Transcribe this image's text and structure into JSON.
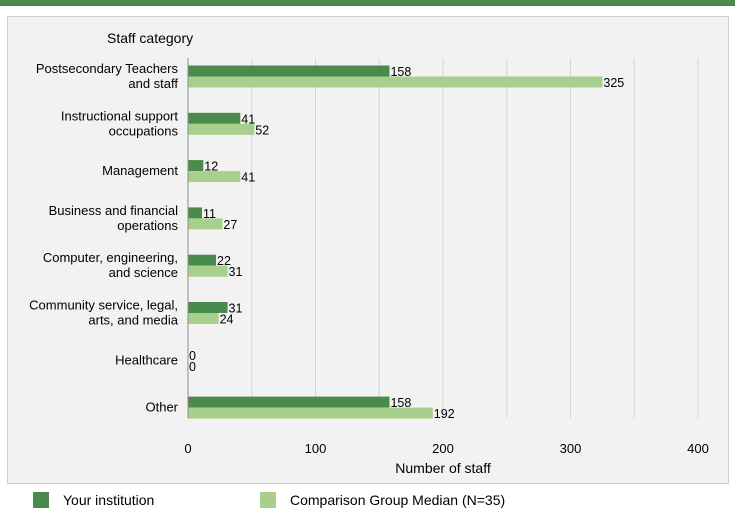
{
  "chart_data": {
    "type": "bar",
    "orientation": "horizontal",
    "title": "Staff category",
    "xlabel": "Number of staff",
    "ylabel": "Staff category",
    "xlim": [
      0,
      400
    ],
    "xticks": [
      0,
      100,
      200,
      300,
      400
    ],
    "grid": true,
    "legend_position": "bottom",
    "categories": [
      [
        "Postsecondary Teachers",
        "and staff"
      ],
      [
        "Instructional support",
        "occupations"
      ],
      [
        "Management"
      ],
      [
        "Business and financial",
        "operations"
      ],
      [
        "Computer, engineering,",
        "and science"
      ],
      [
        "Community service, legal,",
        "arts, and media"
      ],
      [
        "Healthcare"
      ],
      [
        "Other"
      ]
    ],
    "series": [
      {
        "name": "Your institution",
        "color": "#4a8a4d",
        "values": [
          158,
          41,
          12,
          11,
          22,
          31,
          0,
          158
        ]
      },
      {
        "name": "Comparison Group Median (N=35)",
        "color": "#a8d08d",
        "values": [
          325,
          52,
          41,
          27,
          31,
          24,
          0,
          192
        ]
      }
    ]
  },
  "colors": {
    "accent": "#4a8a4d",
    "panel": "#f2f2f2",
    "grid": "#d4d4d4"
  }
}
